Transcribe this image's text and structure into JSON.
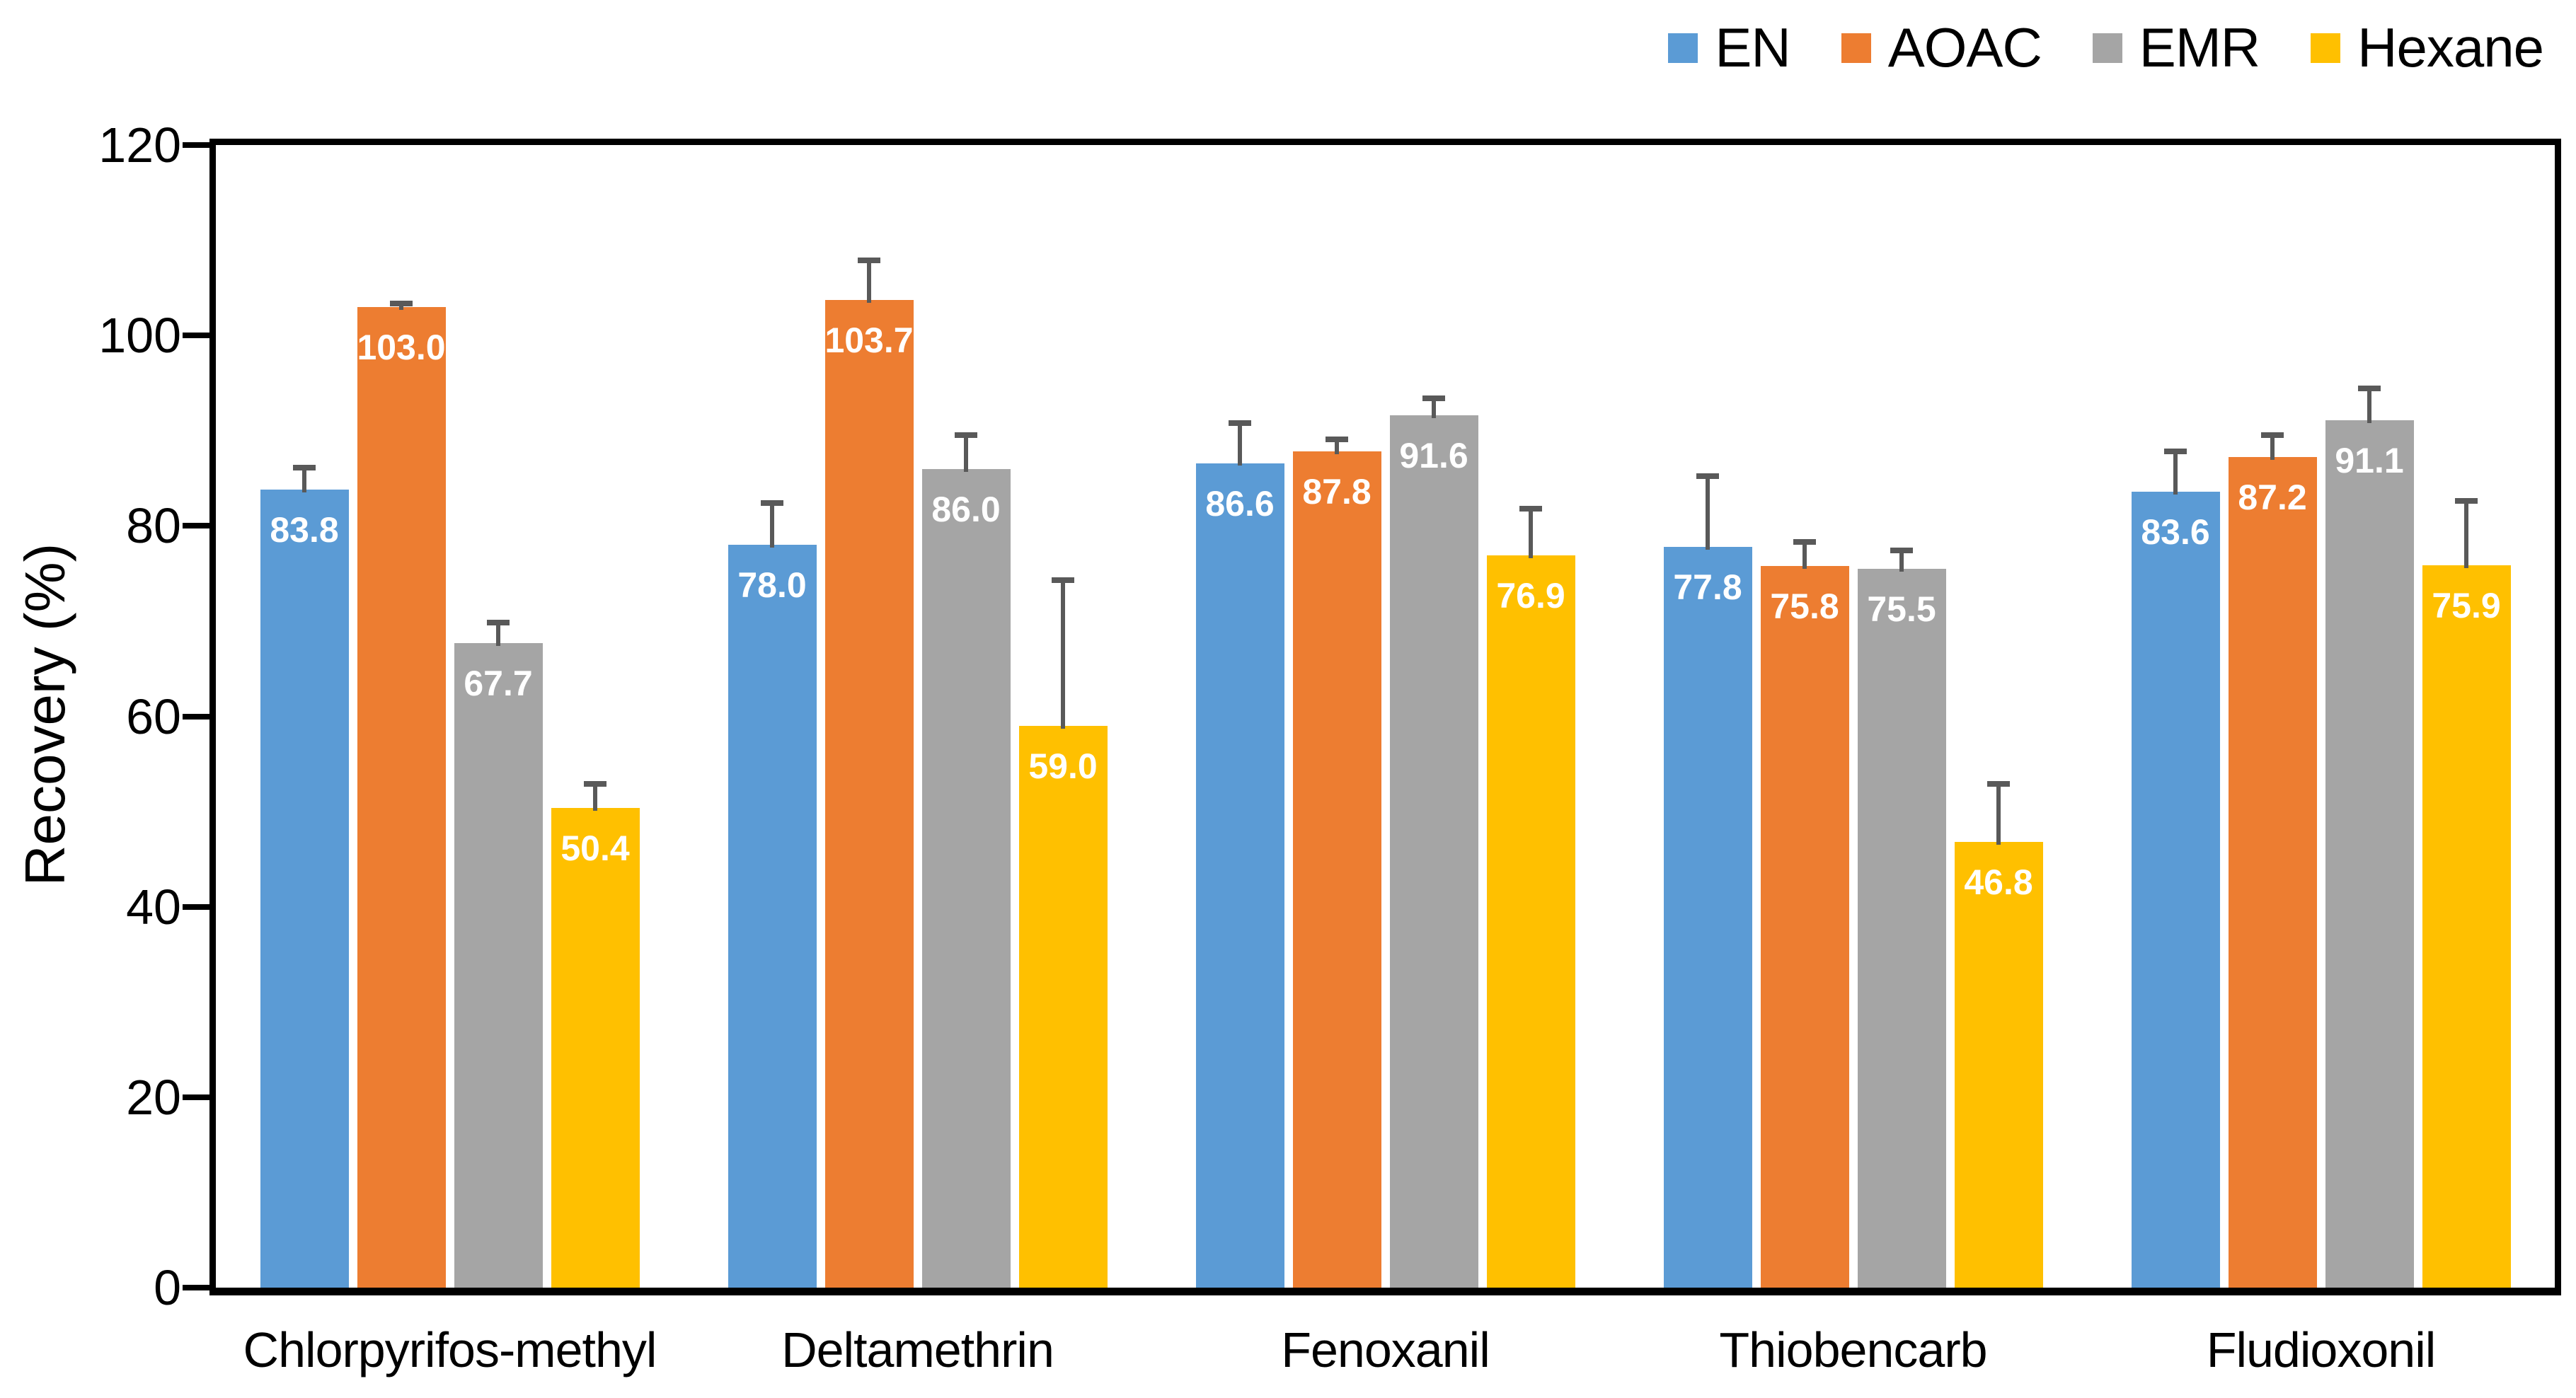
{
  "chart_data": {
    "type": "bar",
    "title": "",
    "ylabel": "Recovery (%)",
    "xlabel": "",
    "ylim": [
      0,
      120
    ],
    "yticks": [
      0,
      20,
      40,
      60,
      80,
      100,
      120
    ],
    "grid": false,
    "legend_position": "top-right",
    "plot_border": true,
    "categories": [
      "Chlorpyrifos-methyl",
      "Deltamethrin",
      "Fenoxanil",
      "Thiobencarb",
      "Fludioxonil"
    ],
    "series": [
      {
        "name": "EN",
        "color": "#5B9BD5",
        "values": [
          83.8,
          78.0,
          86.6,
          77.8,
          83.6
        ],
        "errors_plus": [
          2.4,
          4.5,
          4.3,
          7.5,
          4.3
        ]
      },
      {
        "name": "AOAC",
        "color": "#ED7D31",
        "values": [
          103.0,
          103.7,
          87.8,
          75.8,
          87.2
        ],
        "errors_plus": [
          0.4,
          4.3,
          1.4,
          2.6,
          2.4
        ]
      },
      {
        "name": "EMR",
        "color": "#A5A5A5",
        "values": [
          67.7,
          86.0,
          91.6,
          75.5,
          91.1
        ],
        "errors_plus": [
          2.2,
          3.6,
          1.9,
          2.0,
          3.4
        ]
      },
      {
        "name": "Hexane",
        "color": "#FFC000",
        "values": [
          50.4,
          59.0,
          76.9,
          46.8,
          75.9
        ],
        "errors_plus": [
          2.6,
          15.4,
          5.0,
          6.2,
          6.8
        ]
      }
    ],
    "data_label_decimals": 1,
    "data_label_color": "#FFFFFF",
    "error_bar_color": "#595959",
    "axis_color": "#000000",
    "background_color": "#FFFFFF"
  }
}
